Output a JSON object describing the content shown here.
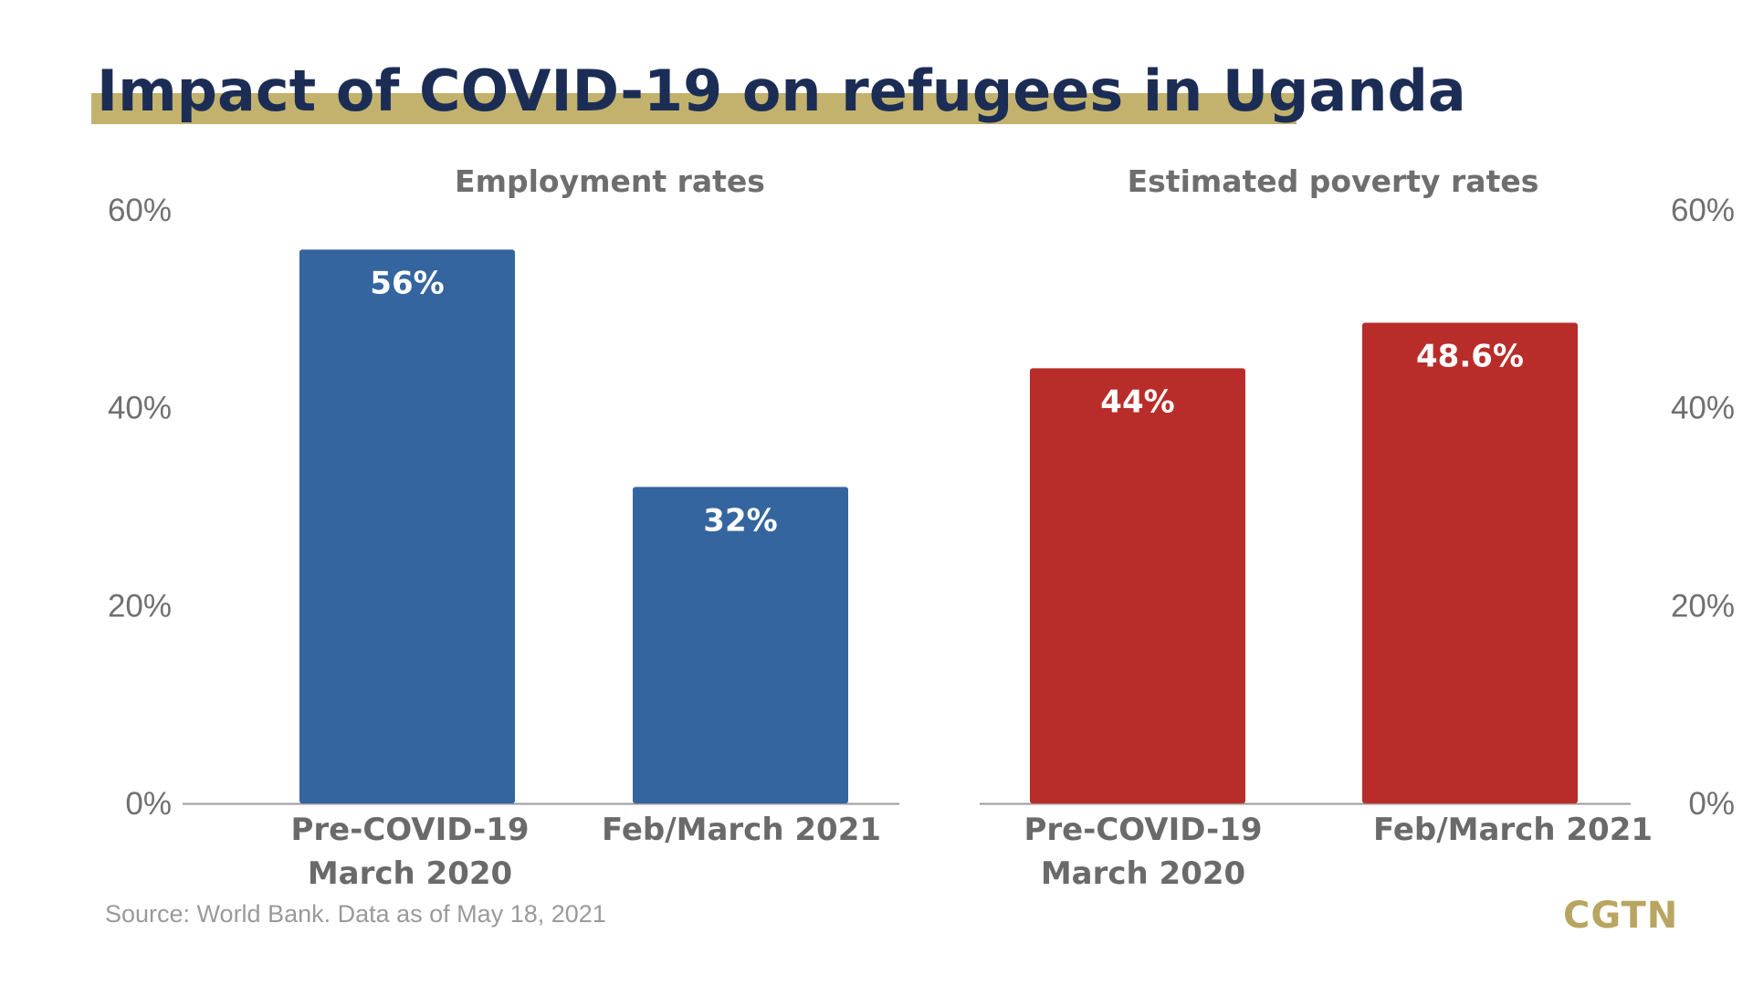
{
  "title": "Impact of COVID-19 on refugees in Uganda",
  "source": "Source: World Bank. Data as of May 18, 2021",
  "logo": "CGTN",
  "colors": {
    "title": "#1c2d55",
    "title_underline": "#c2b26e",
    "employment_bar": "#34659e",
    "poverty_bar": "#b82d2a",
    "axis_text": "#707070",
    "subtitle_text": "#6e6e6e",
    "category_text": "#6a6a6a",
    "baseline": "#9a9a9a",
    "logo": "#b8a561"
  },
  "chart_data": [
    {
      "type": "bar",
      "title": "Employment rates",
      "categories": [
        {
          "line1": "Pre-COVID-19",
          "line2": "March 2020"
        },
        {
          "line1": "Feb/March 2021",
          "line2": ""
        }
      ],
      "values": [
        56,
        32
      ],
      "data_labels": [
        "56%",
        "32%"
      ],
      "ylim": [
        0,
        60
      ],
      "yticks": [
        "0%",
        "20%",
        "40%",
        "60%"
      ],
      "axis_side": "left",
      "color": "#34659e",
      "grid": false
    },
    {
      "type": "bar",
      "title": "Estimated poverty rates",
      "categories": [
        {
          "line1": "Pre-COVID-19",
          "line2": "March 2020"
        },
        {
          "line1": "Feb/March 2021",
          "line2": ""
        }
      ],
      "values": [
        44,
        48.6
      ],
      "data_labels": [
        "44%",
        "48.6%"
      ],
      "ylim": [
        0,
        60
      ],
      "yticks": [
        "0%",
        "20%",
        "40%",
        "60%"
      ],
      "axis_side": "right",
      "color": "#b82d2a",
      "grid": false
    }
  ]
}
